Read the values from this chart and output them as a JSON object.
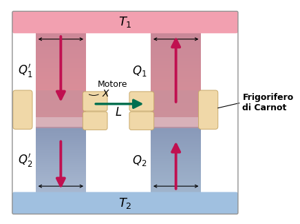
{
  "bg_color": "#ffffff",
  "T1_color": "#f2a0b0",
  "T2_color": "#a0c0e0",
  "col_pink": "#d8909c",
  "col_blue": "#9daec8",
  "col_white": "#ffffff",
  "connector_color": "#f0d8a8",
  "connector_edge": "#c8a868",
  "arrow_color": "#c01050",
  "work_arrow_color": "#007050",
  "outline_color": "#808080",
  "T1_label": "$T_1$",
  "T2_label": "$T_2$",
  "Q1p_label": "$Q_1'$",
  "Q1_label": "$Q_1$",
  "Q2p_label": "$Q_2'$",
  "Q2_label": "$Q_2$",
  "L_label": "$L$",
  "motor_label": "Motore",
  "motor_x_label": "$X$",
  "fridg1": "Frigorifero",
  "fridg2": "di Carnot",
  "figw": 4.36,
  "figh": 3.25,
  "dpi": 100
}
